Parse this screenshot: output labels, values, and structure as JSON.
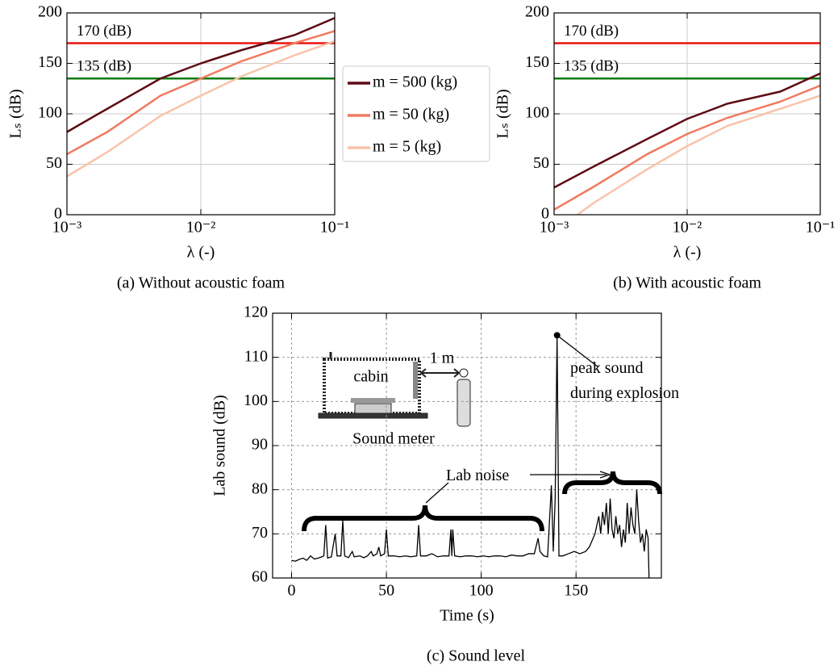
{
  "chart_data": [
    {
      "type": "line",
      "caption": "(a) Without acoustic foam",
      "xlabel": "λ (-)",
      "ylabel": "Lₛ (dB)",
      "xscale": "log",
      "xlim": [
        0.001,
        0.1
      ],
      "xticks": [
        {
          "value": 0.001,
          "label": "10⁻³"
        },
        {
          "value": 0.01,
          "label": "10⁻²"
        },
        {
          "value": 0.1,
          "label": "10⁻¹"
        }
      ],
      "ylim": [
        0,
        200
      ],
      "yticks": [
        0,
        50,
        100,
        150,
        200
      ],
      "grid": "solid",
      "legend": "outside-right",
      "hlines": [
        {
          "value": 170,
          "label": "170 (dB)",
          "color": "#e8150f"
        },
        {
          "value": 135,
          "label": "135 (dB)",
          "color": "#0f7a12"
        }
      ],
      "series": [
        {
          "name": "m = 500 (kg)",
          "color": "#5e0b15",
          "x": [
            0.001,
            0.002,
            0.005,
            0.01,
            0.02,
            0.05,
            0.1
          ],
          "values": [
            82,
            105,
            135,
            150,
            163,
            178,
            195
          ]
        },
        {
          "name": "m = 50 (kg)",
          "color": "#f07a60",
          "x": [
            0.001,
            0.002,
            0.005,
            0.01,
            0.02,
            0.05,
            0.1
          ],
          "values": [
            60,
            82,
            118,
            135,
            152,
            170,
            182
          ]
        },
        {
          "name": "m = 5 (kg)",
          "color": "#f9c3aa",
          "x": [
            0.001,
            0.002,
            0.005,
            0.01,
            0.02,
            0.05,
            0.1
          ],
          "values": [
            38,
            62,
            98,
            118,
            137,
            158,
            172
          ]
        }
      ]
    },
    {
      "type": "line",
      "caption": "(b) With acoustic foam",
      "xlabel": "λ (-)",
      "ylabel": "Lₛ (dB)",
      "xscale": "log",
      "xlim": [
        0.001,
        0.1
      ],
      "xticks": [
        {
          "value": 0.001,
          "label": "10⁻³"
        },
        {
          "value": 0.01,
          "label": "10⁻²"
        },
        {
          "value": 0.1,
          "label": "10⁻¹"
        }
      ],
      "ylim": [
        0,
        200
      ],
      "yticks": [
        0,
        50,
        100,
        150,
        200
      ],
      "grid": "solid",
      "hlines": [
        {
          "value": 170,
          "label": "170 (dB)",
          "color": "#e8150f"
        },
        {
          "value": 135,
          "label": "135 (dB)",
          "color": "#0f7a12"
        }
      ],
      "series": [
        {
          "color": "#5e0b15",
          "x": [
            0.001,
            0.002,
            0.005,
            0.01,
            0.02,
            0.05,
            0.1
          ],
          "values": [
            27,
            48,
            75,
            95,
            110,
            122,
            140
          ]
        },
        {
          "color": "#f07a60",
          "x": [
            0.001,
            0.002,
            0.005,
            0.01,
            0.02,
            0.05,
            0.1
          ],
          "values": [
            5,
            28,
            60,
            80,
            96,
            112,
            128
          ]
        },
        {
          "color": "#f9c3aa",
          "x": [
            0.0015,
            0.002,
            0.005,
            0.01,
            0.02,
            0.05,
            0.1
          ],
          "values": [
            0,
            12,
            45,
            68,
            88,
            105,
            118
          ]
        }
      ]
    },
    {
      "type": "line",
      "caption": "(c) Sound level",
      "xlabel": "Time (s)",
      "ylabel": "Lab sound (dB)",
      "xlim": [
        -10,
        195
      ],
      "xticks": [
        0,
        50,
        100,
        150
      ],
      "ylim": [
        60,
        120
      ],
      "yticks": [
        60,
        70,
        80,
        90,
        100,
        110,
        120
      ],
      "grid": "dashed",
      "series": [
        {
          "color": "#000000",
          "x": [
            0,
            2,
            4,
            6,
            8,
            10,
            12,
            14,
            16,
            17,
            18,
            19,
            21,
            23,
            24,
            26,
            27,
            28,
            30,
            32,
            33,
            36,
            38,
            40,
            42,
            43,
            45,
            46,
            47,
            49,
            50,
            51,
            54,
            57,
            60,
            63,
            66,
            67,
            68,
            71,
            74,
            77,
            80,
            83,
            84,
            84.5,
            85,
            86,
            89,
            92,
            95,
            98,
            101,
            104,
            107,
            110,
            113,
            116,
            119,
            122,
            125,
            128,
            130,
            131,
            133,
            135,
            137,
            138,
            139,
            140,
            141,
            143,
            146,
            149,
            152,
            155,
            157,
            159,
            160,
            162,
            163,
            164,
            165,
            166,
            167,
            168,
            169,
            170,
            171,
            172,
            173,
            174,
            175,
            176,
            177,
            178,
            179,
            180,
            181,
            182,
            183,
            184,
            185,
            186,
            187,
            188,
            188.5
          ],
          "values": [
            64,
            63.8,
            64.2,
            64.5,
            64,
            65,
            64.3,
            64.5,
            64.8,
            65,
            72,
            64.5,
            64.8,
            70,
            65,
            65,
            73,
            65,
            64.6,
            66,
            64.8,
            65,
            64.6,
            65,
            66,
            65,
            65.5,
            67,
            65,
            65.5,
            71,
            65,
            65,
            64.8,
            65,
            64.8,
            65,
            72,
            65,
            65,
            65.5,
            64.8,
            65,
            65,
            71,
            65,
            71,
            65,
            64.8,
            65,
            65,
            64.8,
            65,
            64.8,
            65,
            65,
            64.8,
            65.2,
            65,
            65,
            65.5,
            65.5,
            69,
            66,
            65,
            64.8,
            81,
            66,
            78,
            115,
            65,
            65,
            65.5,
            66,
            65.5,
            66,
            67,
            69,
            70,
            74,
            70,
            75,
            72,
            77,
            70,
            78,
            71,
            69,
            74,
            70,
            72,
            67,
            71,
            68,
            77,
            70,
            76,
            72,
            70,
            80,
            73,
            68,
            70,
            66,
            71,
            69,
            60
          ]
        }
      ],
      "annotations": [
        {
          "text": "peak sound during explosion",
          "x": 140,
          "y": 115
        },
        {
          "text": "Lab noise"
        }
      ],
      "inset_labels": [
        "cabin",
        "1 m",
        "Sound meter"
      ]
    }
  ]
}
